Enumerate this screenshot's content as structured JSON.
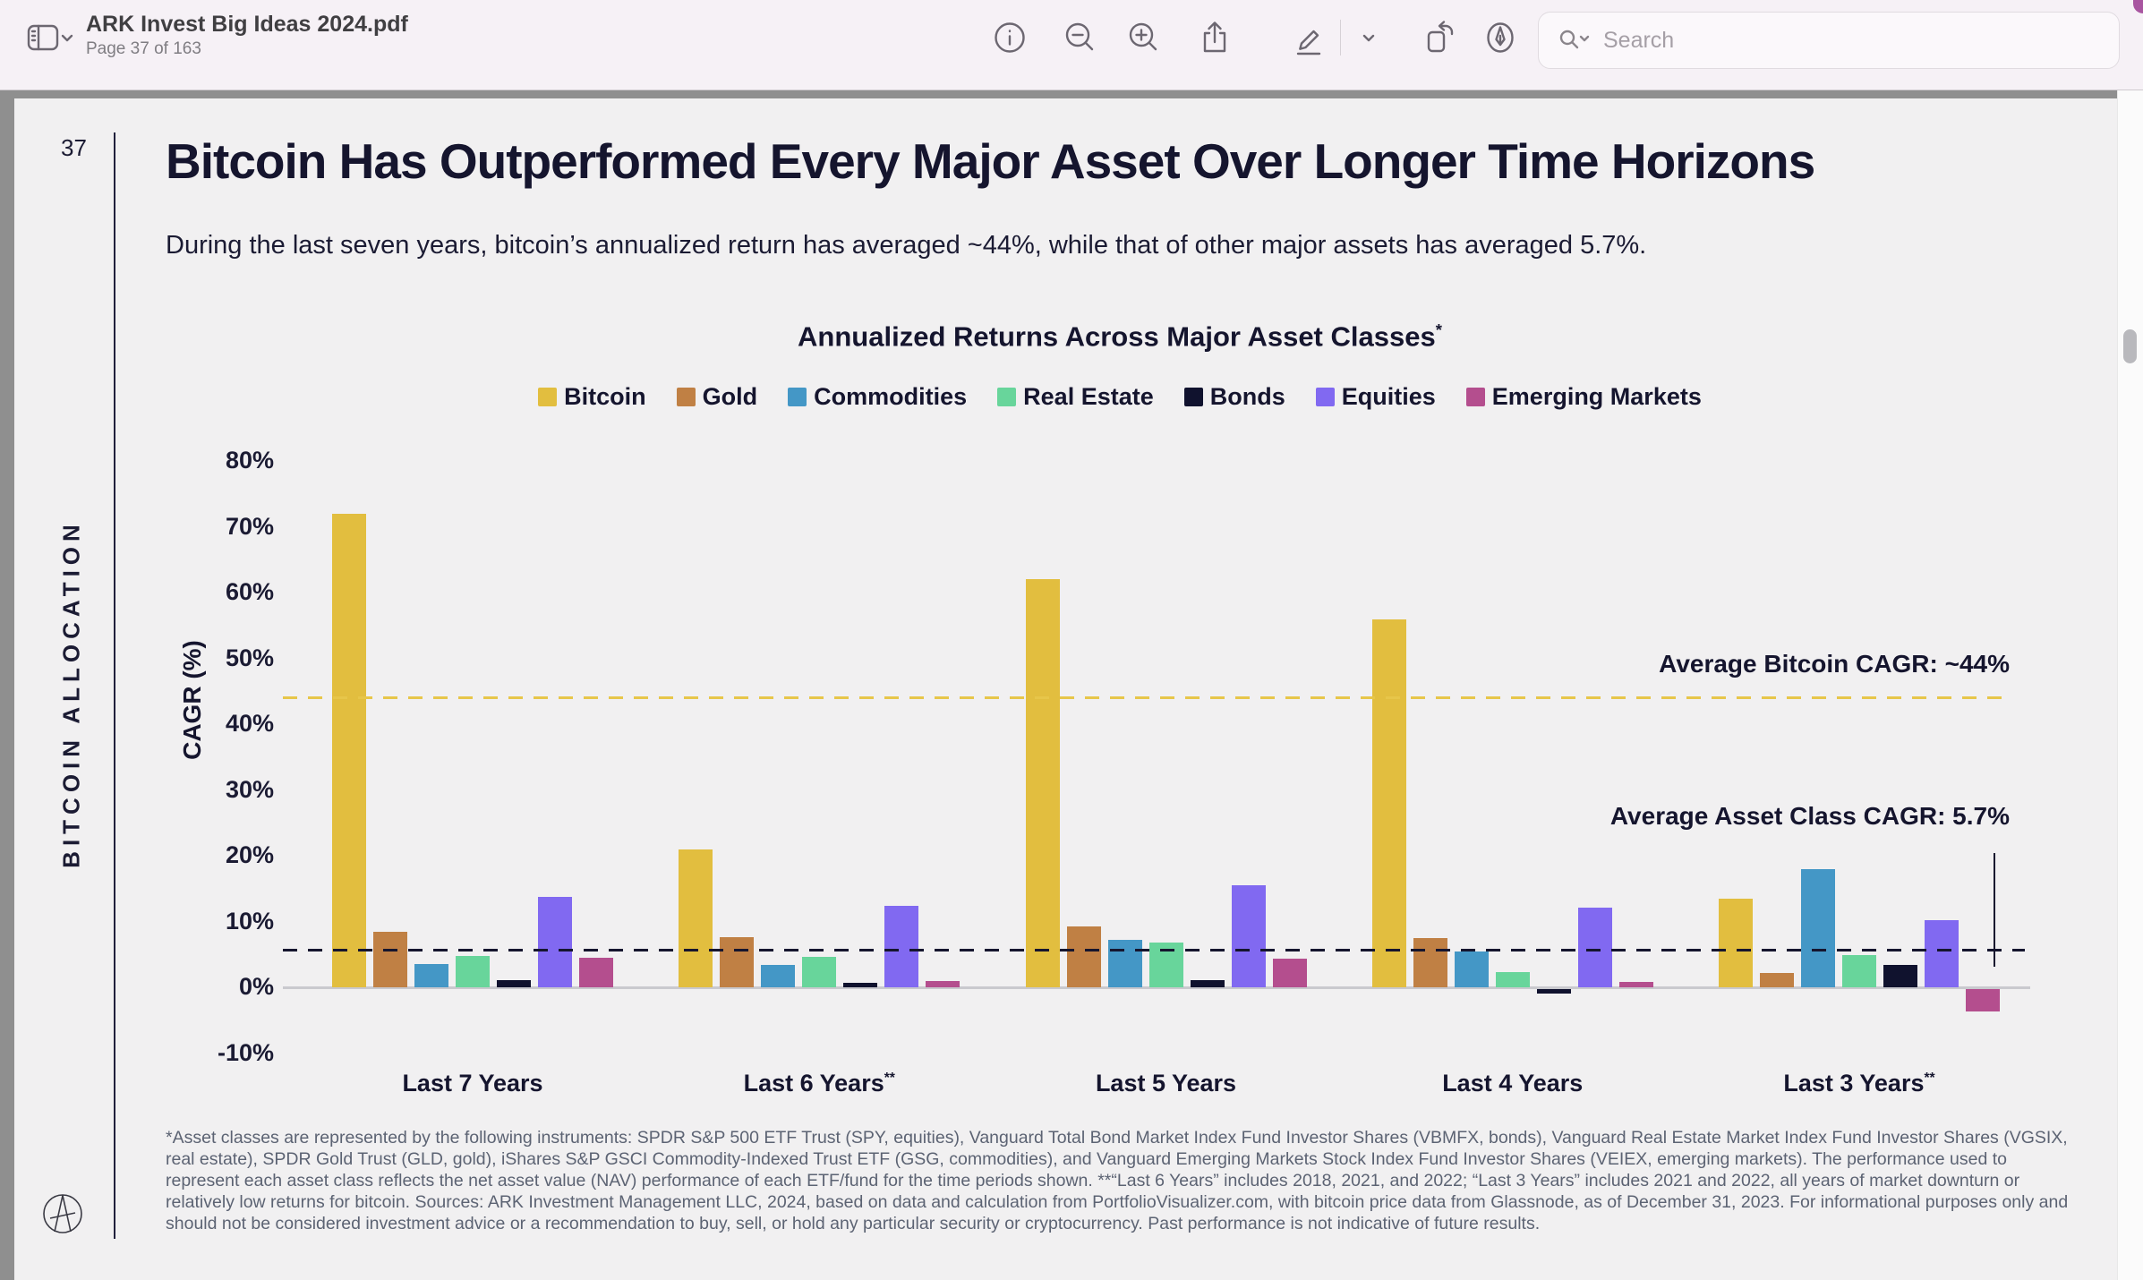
{
  "app": {
    "title": "ARK Invest Big Ideas 2024.pdf",
    "page_indicator": "Page 37 of 163",
    "search_placeholder": "Search",
    "toolbar_icons": [
      "sidebar-toggle",
      "sidebar-options-chevron",
      "info",
      "zoom-out",
      "zoom-in",
      "share",
      "markup",
      "markup-options-chevron",
      "rotate",
      "fill-and-sign",
      "search"
    ]
  },
  "page": {
    "number": "37",
    "sidebar_label": "BITCOIN ALLOCATION",
    "title": "Bitcoin Has Outperformed Every Major Asset Over Longer Time Horizons",
    "subtitle": "During the last seven years, bitcoin’s annualized return has averaged ~44%, while that of other major assets has averaged 5.7%.",
    "footnote": "*Asset classes are represented by the following instruments: SPDR S&P 500 ETF Trust (SPY, equities), Vanguard Total Bond Market Index Fund Investor Shares (VBMFX, bonds), Vanguard Real Estate Market Index Fund Investor Shares (VGSIX, real estate), SPDR Gold Trust (GLD, gold), iShares S&P GSCI Commodity-Indexed Trust ETF (GSG, commodities), and Vanguard Emerging Markets Stock Index Fund Investor Shares (VEIEX, emerging markets). The performance used to represent each asset class reflects the net asset value (NAV) performance of each ETF/fund for the time periods shown. **“Last 6 Years” includes 2018, 2021, and 2022; “Last 3 Years” includes 2021 and 2022, all years of market downturn or relatively low returns for bitcoin. Sources: ARK Investment Management LLC, 2024, based on data and calculation from PortfolioVisualizer.com, with bitcoin price data from Glassnode, as of December 31, 2023. For informational purposes only and should not be considered investment advice or a recommendation to buy, sell, or hold any particular security or cryptocurrency. Past performance is not indicative of future results."
  },
  "chart_data": {
    "type": "bar",
    "title": "Annualized Returns Across Major Asset Classes",
    "title_sup": "*",
    "xlabel": "",
    "ylabel": "CAGR (%)",
    "ylim": [
      -10,
      80
    ],
    "ytick_step": 10,
    "ytick_labels": [
      "80%",
      "70%",
      "60%",
      "50%",
      "40%",
      "30%",
      "20%",
      "10%",
      "0%",
      "-10%"
    ],
    "grid": false,
    "legend_position": "top",
    "categories": [
      "Last 7 Years",
      "Last 6 Years",
      "Last 5 Years",
      "Last 4 Years",
      "Last 3 Years"
    ],
    "category_sups": [
      "",
      "**",
      "",
      "",
      "**"
    ],
    "series": [
      {
        "name": "Bitcoin",
        "color": "#E2BE3F",
        "values": [
          72,
          21,
          62,
          56,
          13.5
        ]
      },
      {
        "name": "Gold",
        "color": "#C08044",
        "values": [
          8.5,
          7.7,
          9.3,
          7.6,
          2.3
        ]
      },
      {
        "name": "Commodities",
        "color": "#4497C6",
        "values": [
          3.6,
          3.4,
          7.3,
          5.5,
          18
        ]
      },
      {
        "name": "Real Estate",
        "color": "#68D59B",
        "values": [
          4.8,
          4.7,
          6.9,
          2.4,
          4.9
        ]
      },
      {
        "name": "Bonds",
        "color": "#10122E",
        "values": [
          1.1,
          0.8,
          1.1,
          -0.7,
          3.5
        ]
      },
      {
        "name": "Equities",
        "color": "#8169F1",
        "values": [
          13.8,
          12.4,
          15.6,
          12.2,
          10.2
        ]
      },
      {
        "name": "Emerging Markets",
        "color": "#B44E8E",
        "values": [
          4.5,
          1,
          4.4,
          0.9,
          -3.4
        ]
      }
    ],
    "reference_lines": [
      {
        "label": "Average Bitcoin CAGR: ~44%",
        "value": 44,
        "style": "dashed",
        "color": "#E7C64A",
        "label_color": "#15152e"
      },
      {
        "label": "Average Asset Class CAGR: 5.7%",
        "value": 5.7,
        "style": "dashed",
        "color": "#15152e",
        "label_color": "#15152e"
      }
    ]
  }
}
